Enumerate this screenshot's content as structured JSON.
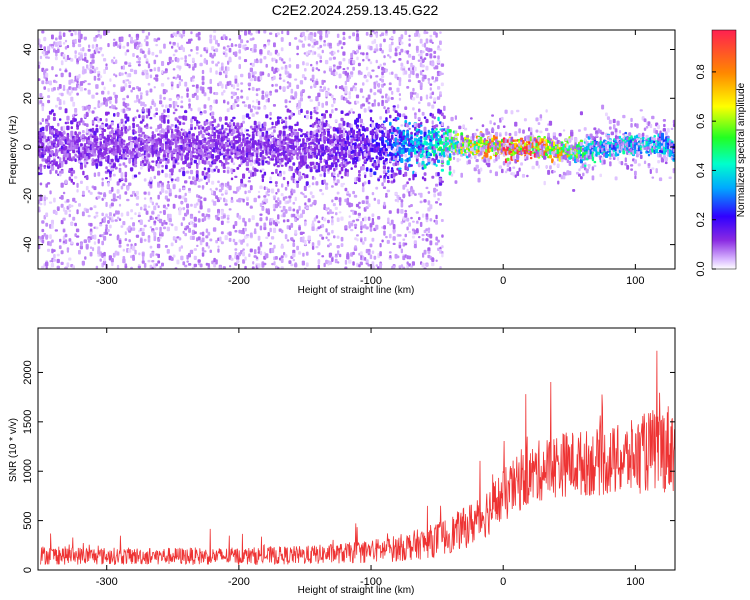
{
  "title": "C2E2.2024.259.13.45.G22",
  "chart_data": [
    {
      "type": "heatmap",
      "xlabel": "Height of straight line (km)",
      "ylabel": "Frequency (Hz)",
      "xlim": [
        -352,
        130
      ],
      "ylim": [
        -50,
        48
      ],
      "x_ticks": [
        -300,
        -200,
        -100,
        0,
        100
      ],
      "y_ticks": [
        -40,
        -20,
        0,
        20,
        40
      ],
      "x_tick_labels": [
        "-300",
        "-200",
        "-100",
        "0",
        "100"
      ],
      "y_tick_labels": [
        "-40",
        "-20",
        "0",
        "20",
        "40"
      ],
      "colorbar": {
        "label": "Normalized spectral amplitude",
        "range": [
          0,
          0.97
        ],
        "ticks": [
          0.0,
          0.2,
          0.4,
          0.6,
          0.8
        ],
        "tick_labels": [
          "0.0",
          "0.2",
          "0.4",
          "0.6",
          "0.8"
        ],
        "colormap": "rainbow"
      },
      "ridge": [
        {
          "height": -350,
          "freq": 0,
          "amplitude": 0.12
        },
        {
          "height": -300,
          "freq": 0,
          "amplitude": 0.12
        },
        {
          "height": -250,
          "freq": 0,
          "amplitude": 0.12
        },
        {
          "height": -200,
          "freq": 0,
          "amplitude": 0.13
        },
        {
          "height": -150,
          "freq": 0,
          "amplitude": 0.14
        },
        {
          "height": -100,
          "freq": 0,
          "amplitude": 0.2
        },
        {
          "height": -75,
          "freq": 1,
          "amplitude": 0.35
        },
        {
          "height": -50,
          "freq": 1,
          "amplitude": 0.45
        },
        {
          "height": -40,
          "freq": 1,
          "amplitude": 0.55
        },
        {
          "height": -25,
          "freq": 0.5,
          "amplitude": 0.7
        },
        {
          "height": -10,
          "freq": 0,
          "amplitude": 0.85
        },
        {
          "height": 0,
          "freq": 0,
          "amplitude": 0.95
        },
        {
          "height": 15,
          "freq": 0,
          "amplitude": 0.9
        },
        {
          "height": 30,
          "freq": 0,
          "amplitude": 0.85
        },
        {
          "height": 45,
          "freq": -1,
          "amplitude": 0.75
        },
        {
          "height": 60,
          "freq": -2,
          "amplitude": 0.5
        },
        {
          "height": 80,
          "freq": 0,
          "amplitude": 0.4
        },
        {
          "height": 100,
          "freq": 1,
          "amplitude": 0.45
        },
        {
          "height": 120,
          "freq": 1,
          "amplitude": 0.4
        },
        {
          "height": 130,
          "freq": 0,
          "amplitude": 0.35
        }
      ],
      "noise_extent_height": -45
    },
    {
      "type": "line",
      "xlabel": "Height of straight line (km)",
      "ylabel": "SNR (10 * v/v)",
      "xlim": [
        -352,
        130
      ],
      "ylim": [
        0,
        2450
      ],
      "x_ticks": [
        -300,
        -200,
        -100,
        0,
        100
      ],
      "y_ticks": [
        0,
        500,
        1000,
        1500,
        2000
      ],
      "x_tick_labels": [
        "-300",
        "-200",
        "-100",
        "0",
        "100"
      ],
      "y_tick_labels": [
        "0",
        "500",
        "1000",
        "1500",
        "2000"
      ],
      "series": [
        {
          "color": "#ee3333",
          "x": [
            -350,
            -300,
            -250,
            -200,
            -150,
            -120,
            -100,
            -80,
            -60,
            -50,
            -40,
            -30,
            -20,
            -10,
            0,
            10,
            20,
            30,
            40,
            50,
            60,
            70,
            80,
            90,
            100,
            110,
            120,
            130
          ],
          "y": [
            150,
            140,
            140,
            140,
            150,
            170,
            190,
            220,
            270,
            310,
            360,
            420,
            500,
            620,
            740,
            860,
            950,
            1020,
            1060,
            1080,
            1080,
            1090,
            1100,
            1110,
            1150,
            1200,
            1230,
            1250
          ],
          "spread": [
            120,
            110,
            110,
            110,
            120,
            130,
            150,
            170,
            200,
            220,
            240,
            260,
            300,
            330,
            350,
            360,
            380,
            400,
            420,
            420,
            420,
            430,
            440,
            460,
            480,
            520,
            560,
            600
          ]
        }
      ]
    }
  ]
}
